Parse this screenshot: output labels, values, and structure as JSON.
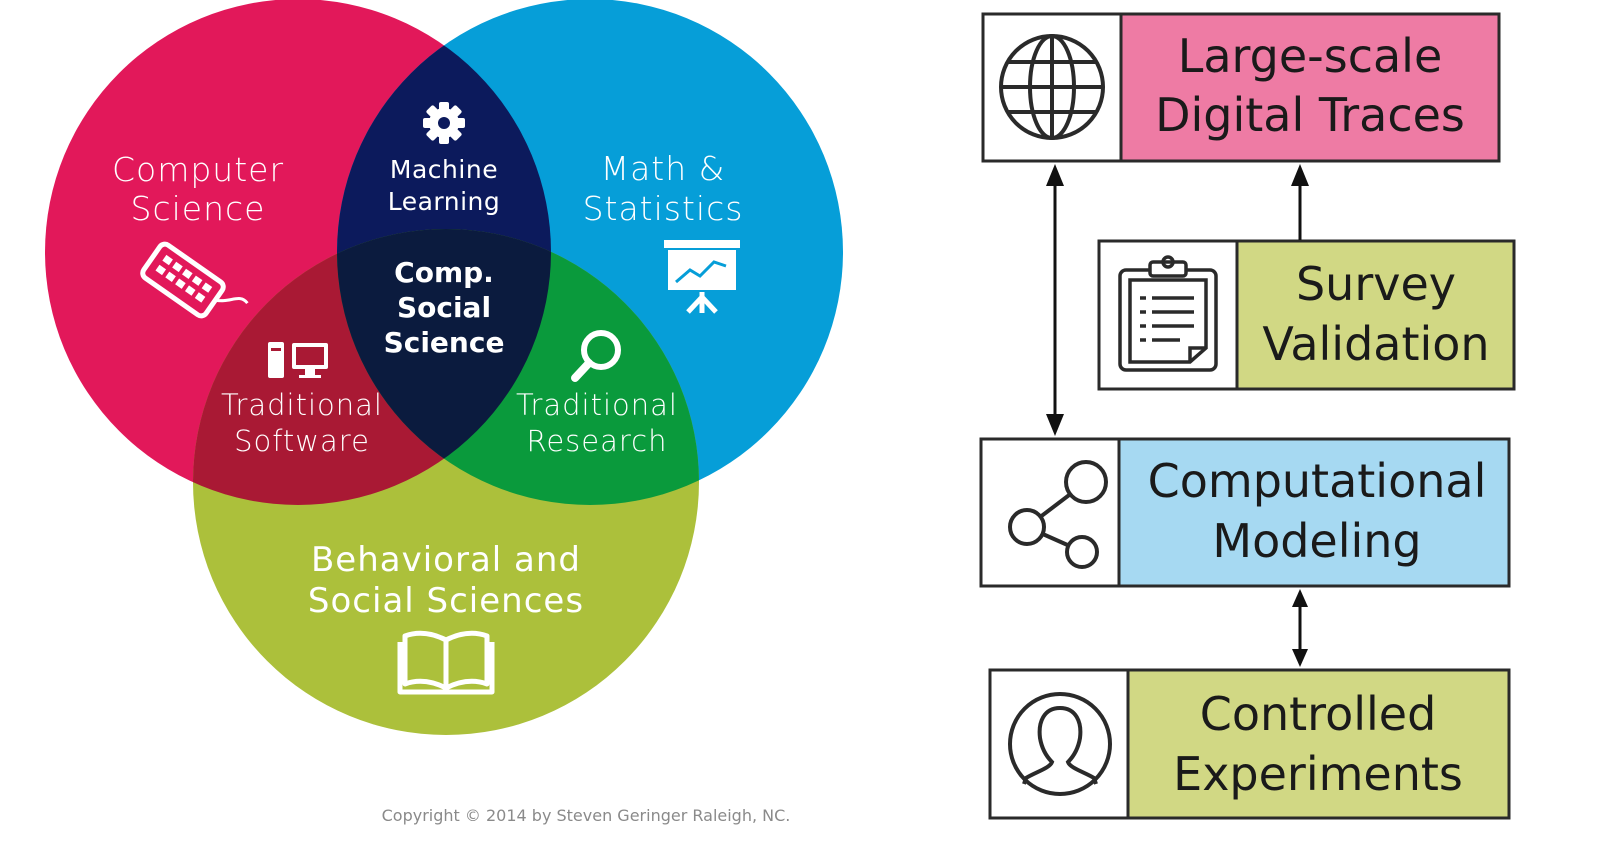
{
  "venn": {
    "colors": {
      "computer_science": "#e2185a",
      "math_statistics": "#069ed8",
      "behavioral_social": "#acc03b",
      "machine_learning": "#0c1a5c",
      "traditional_software": "#a91934",
      "traditional_research": "#0a9a3c",
      "center": "#0b1b3e"
    },
    "labels": {
      "computer_science": [
        "Computer",
        "Science"
      ],
      "math_statistics": [
        "Math &",
        "Statistics"
      ],
      "machine_learning": [
        "Machine",
        "Learning"
      ],
      "comp_social_science": [
        "Comp.",
        "Social",
        "Science"
      ],
      "traditional_software": [
        "Traditional",
        "Software"
      ],
      "traditional_research": [
        "Traditional",
        "Research"
      ],
      "behavioral_social": [
        "Behavioral and",
        "Social Sciences"
      ]
    },
    "icons": {
      "computer_science": "keyboard-icon",
      "math_statistics": "presentation-chart-icon",
      "machine_learning": "gear-icon",
      "traditional_software": "desktop-computer-icon",
      "traditional_research": "magnifier-icon",
      "behavioral_social": "open-book-icon"
    },
    "copyright": "Copyright © 2014 by Steven Geringer Raleigh, NC."
  },
  "flow": {
    "boxes": [
      {
        "id": "digital_traces",
        "lines": [
          "Large-scale",
          "Digital Traces"
        ],
        "color": "#ee7ba4",
        "icon": "globe-icon"
      },
      {
        "id": "survey",
        "lines": [
          "Survey",
          "Validation"
        ],
        "color": "#d1d884",
        "icon": "clipboard-icon"
      },
      {
        "id": "modeling",
        "lines": [
          "Computational",
          "Modeling"
        ],
        "color": "#a6d9f2",
        "icon": "share-network-icon"
      },
      {
        "id": "experiments",
        "lines": [
          "Controlled",
          "Experiments"
        ],
        "color": "#d1d884",
        "icon": "user-profile-icon"
      }
    ]
  }
}
